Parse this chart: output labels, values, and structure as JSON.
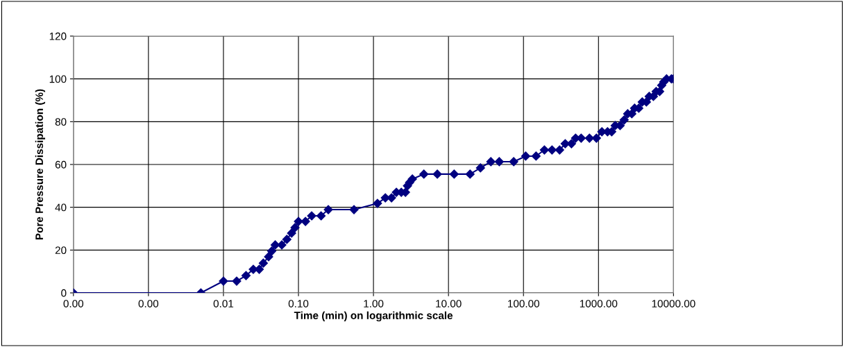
{
  "chart_data": {
    "type": "line",
    "xlabel": "Time (min) on logarithmic scale",
    "ylabel": "Pore Pressure Dissipation (%)",
    "log": "x",
    "grid": true,
    "marker": "diamond",
    "line_style": "solid",
    "legend": false,
    "xlim": [
      0.0001,
      10000
    ],
    "xticks": [
      {
        "value": 0.0001,
        "label": "0.00"
      },
      {
        "value": 0.001,
        "label": "0.00"
      },
      {
        "value": 0.01,
        "label": "0.01"
      },
      {
        "value": 0.1,
        "label": "0.10"
      },
      {
        "value": 1,
        "label": "1.00"
      },
      {
        "value": 10,
        "label": "10.00"
      },
      {
        "value": 100,
        "label": "100.00"
      },
      {
        "value": 1000,
        "label": "1000.00"
      },
      {
        "value": 10000,
        "label": "10000.00"
      }
    ],
    "ylim": [
      0,
      120
    ],
    "yticks": [
      0,
      20,
      40,
      60,
      80,
      100,
      120
    ],
    "series": [
      {
        "color": "#000080",
        "x": [
          0.0001,
          0.005,
          0.01,
          0.015,
          0.02,
          0.025,
          0.03,
          0.034,
          0.04,
          0.044,
          0.049,
          0.06,
          0.07,
          0.081,
          0.09,
          0.1,
          0.124,
          0.15,
          0.2,
          0.25,
          0.55,
          1.13,
          1.44,
          1.74,
          2.02,
          2.35,
          2.67,
          2.84,
          3.03,
          3.3,
          4.7,
          7.1,
          11.9,
          19.4,
          26.7,
          36.7,
          47.5,
          74,
          107,
          147,
          190,
          240,
          303,
          360,
          436,
          495,
          587,
          758,
          938,
          1110,
          1320,
          1500,
          1670,
          1940,
          2200,
          2450,
          2780,
          3030,
          3440,
          3830,
          4350,
          4740,
          5390,
          5870,
          6530,
          6960,
          7420,
          8080,
          9380,
          10000
        ],
        "values": [
          0,
          0,
          5.5,
          5.5,
          8.1,
          11,
          11,
          13.9,
          16.9,
          19.5,
          22.4,
          22.4,
          25,
          27.9,
          30.5,
          33.4,
          33.4,
          36,
          36,
          38.9,
          38.9,
          41.8,
          44.4,
          44.4,
          47,
          47,
          47,
          50,
          51.6,
          53.2,
          55.5,
          55.5,
          55.5,
          55.5,
          58.4,
          61.3,
          61.3,
          61.3,
          63.9,
          63.9,
          66.8,
          66.8,
          66.8,
          69.7,
          69.7,
          72.3,
          72.3,
          72.3,
          72.3,
          75.3,
          75.3,
          75.3,
          78.2,
          78.2,
          80.8,
          83.7,
          83.7,
          86.3,
          86.3,
          89.2,
          89.2,
          91.8,
          91.8,
          94.1,
          94.1,
          97,
          98.6,
          100,
          100,
          100
        ]
      }
    ]
  }
}
